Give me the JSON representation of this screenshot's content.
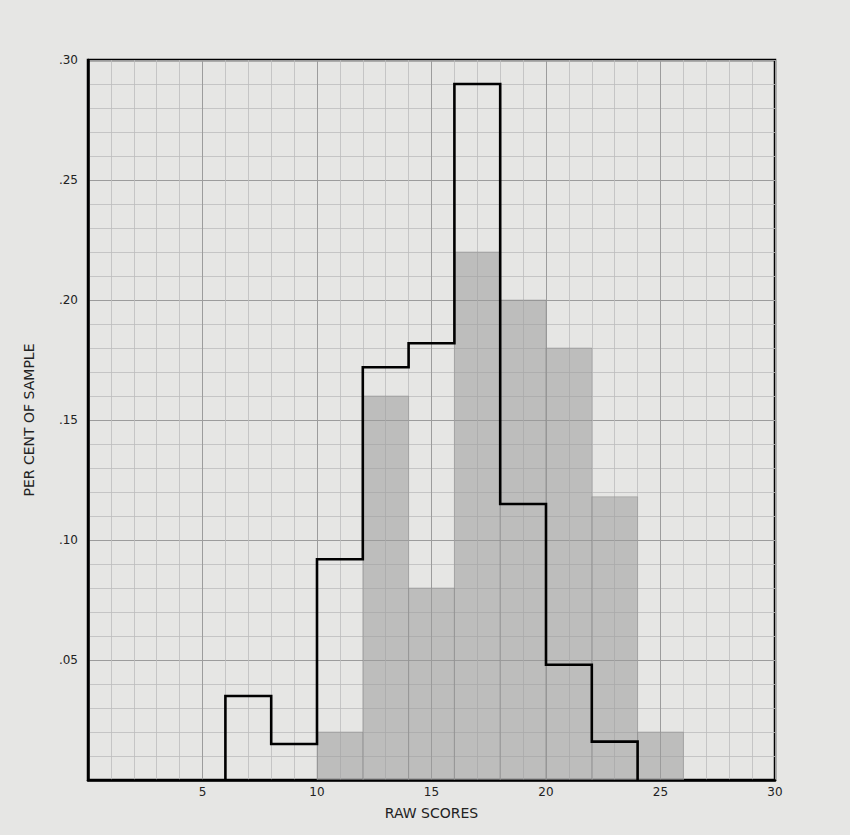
{
  "chart_data": {
    "type": "histogram",
    "x_label": "RAW SCORES",
    "y_label": "PER CENT OF SAMPLE",
    "xlim": [
      0,
      30
    ],
    "xticks": [
      5,
      10,
      15,
      20,
      25,
      30
    ],
    "ylim": [
      0,
      0.3
    ],
    "yticks": [
      {
        "value": 0.05,
        "label": ".05"
      },
      {
        "value": 0.1,
        "label": ".10"
      },
      {
        "value": 0.15,
        "label": ".15"
      },
      {
        "value": 0.2,
        "label": ".20"
      },
      {
        "value": 0.25,
        "label": ".25"
      },
      {
        "value": 0.3,
        "label": ".30"
      }
    ],
    "grid": true,
    "series": [
      {
        "type": "bar",
        "color": "#9a9a9a",
        "bins": [
          10,
          12,
          14,
          16,
          18,
          20,
          22,
          24,
          26
        ],
        "values": [
          0.02,
          0.16,
          0.08,
          0.22,
          0.2,
          0.18,
          0.118,
          0.02
        ]
      },
      {
        "type": "step",
        "color": "#000000",
        "bins": [
          6,
          8,
          10,
          12,
          14,
          16,
          18,
          20,
          22,
          24
        ],
        "values": [
          0.035,
          0.015,
          0.092,
          0.172,
          0.182,
          0.29,
          0.115,
          0.048,
          0.016
        ]
      }
    ]
  }
}
